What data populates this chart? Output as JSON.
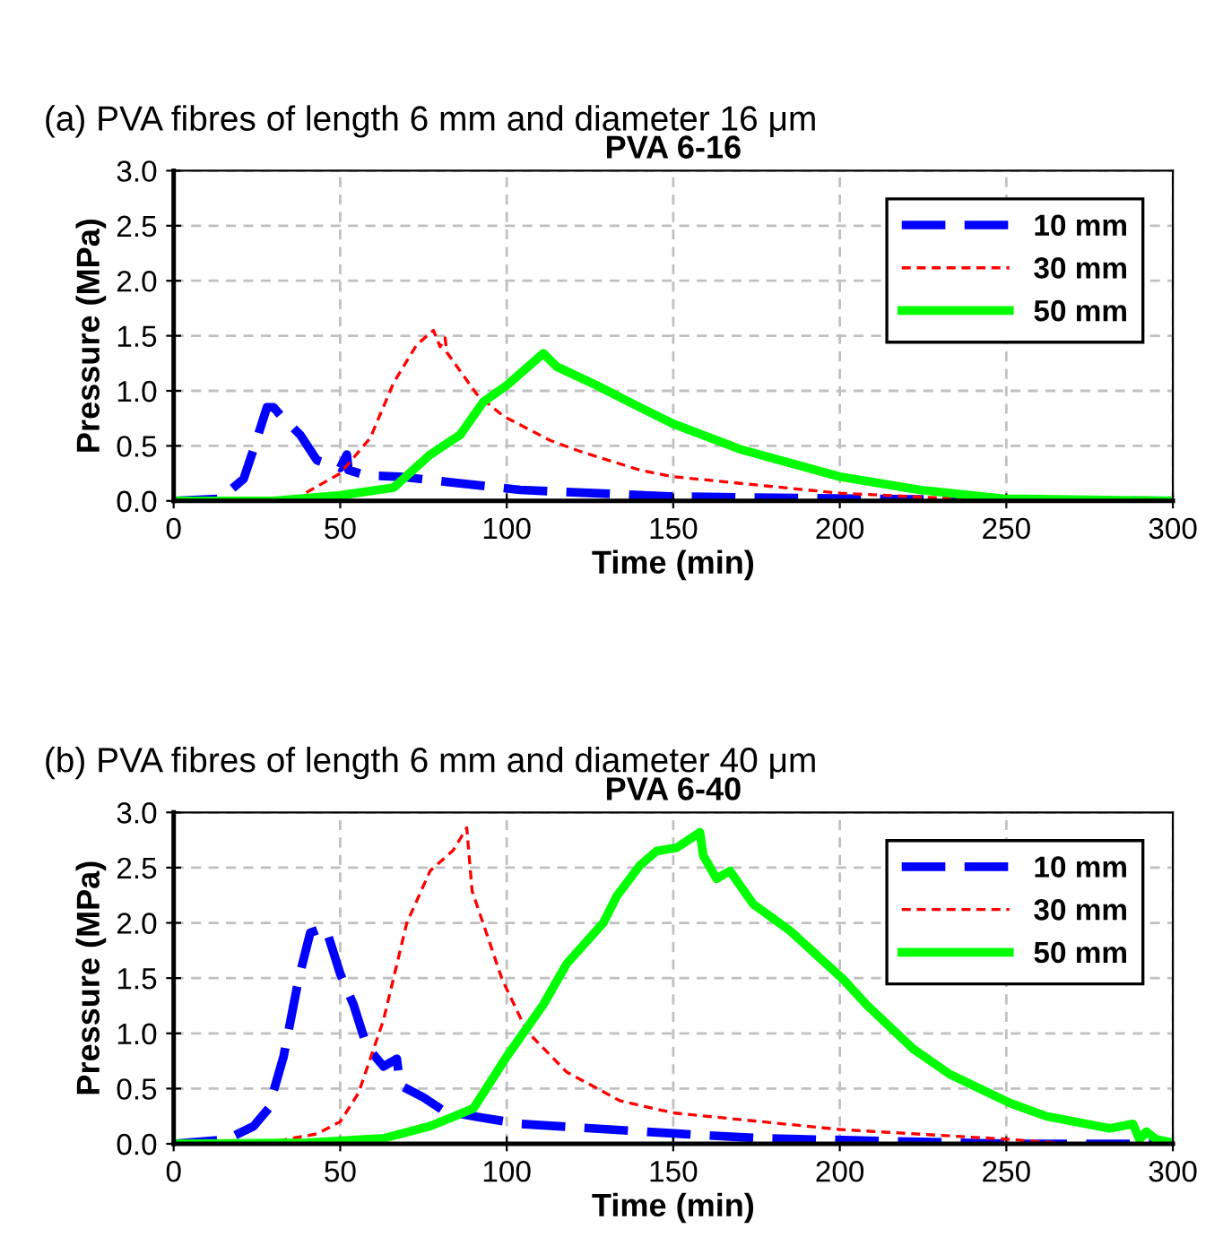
{
  "chart_data": [
    {
      "type": "line",
      "title": "PVA 6-16",
      "annotations": [
        "(a) PVA fibres of length 6 mm and diameter 16 μm"
      ],
      "xlabel": "Time (min)",
      "ylabel": "Pressure (MPa)",
      "xlim": [
        0,
        300
      ],
      "xticks": [
        0,
        50,
        100,
        150,
        200,
        250,
        300
      ],
      "ylim": [
        0,
        3.0
      ],
      "yticks": [
        {
          "value": 0,
          "label": "0.0"
        },
        {
          "value": 0.5,
          "label": "0.5"
        },
        {
          "value": 1.0,
          "label": "1.0"
        },
        {
          "value": 1.5,
          "label": "1.5"
        },
        {
          "value": 2.0,
          "label": "2.0"
        },
        {
          "value": 2.5,
          "label": "2.5"
        },
        {
          "value": 3.0,
          "label": "3.0"
        }
      ],
      "grid": true,
      "legend": "top right",
      "series": [
        {
          "name": "10 mm",
          "color": "#0000ff",
          "line_style": "dashed",
          "x": [
            0,
            14,
            21,
            24,
            28,
            30,
            32,
            38,
            43,
            50,
            52,
            52.5,
            58,
            68,
            104,
            149,
            174,
            233,
            300
          ],
          "values": [
            0,
            0.02,
            0.2,
            0.47,
            0.85,
            0.85,
            0.78,
            0.6,
            0.37,
            0.3,
            0.42,
            0.28,
            0.23,
            0.22,
            0.1,
            0.04,
            0.03,
            0.01,
            0
          ]
        },
        {
          "name": "30 mm",
          "color": "#ff0000",
          "line_style": "dotted",
          "x": [
            0,
            30,
            36,
            50,
            59,
            66,
            73,
            78,
            80,
            81.5,
            82,
            91,
            99,
            113,
            122,
            140,
            150,
            200,
            249,
            300
          ],
          "values": [
            0,
            0,
            0.01,
            0.25,
            0.57,
            1.07,
            1.42,
            1.55,
            1.4,
            1.48,
            1.35,
            0.97,
            0.77,
            0.55,
            0.45,
            0.28,
            0.22,
            0.07,
            0,
            0
          ]
        },
        {
          "name": "50 mm",
          "color": "#00ff00",
          "line_style": "solid",
          "x": [
            0,
            30,
            50,
            66,
            77,
            86,
            93,
            100,
            111,
            115,
            127,
            138,
            150,
            170,
            200,
            224,
            249,
            300
          ],
          "values": [
            0,
            0,
            0.05,
            0.12,
            0.42,
            0.6,
            0.9,
            1.05,
            1.34,
            1.22,
            1.05,
            0.88,
            0.7,
            0.47,
            0.22,
            0.1,
            0.02,
            0
          ]
        }
      ]
    },
    {
      "type": "line",
      "title": "PVA 6-40",
      "annotations": [
        "(b) PVA fibres of length 6 mm and diameter 40 μm"
      ],
      "xlabel": "Time (min)",
      "ylabel": "Pressure (MPa)",
      "xlim": [
        0,
        300
      ],
      "xticks": [
        0,
        50,
        100,
        150,
        200,
        250,
        300
      ],
      "ylim": [
        0,
        3.0
      ],
      "yticks": [
        {
          "value": 0,
          "label": "0.0"
        },
        {
          "value": 0.5,
          "label": "0.5"
        },
        {
          "value": 1.0,
          "label": "1.0"
        },
        {
          "value": 1.5,
          "label": "1.5"
        },
        {
          "value": 2.0,
          "label": "2.0"
        },
        {
          "value": 2.5,
          "label": "2.5"
        },
        {
          "value": 3.0,
          "label": "3.0"
        }
      ],
      "grid": true,
      "legend": "top right",
      "series": [
        {
          "name": "10 mm",
          "color": "#0000ff",
          "line_style": "dashed",
          "x": [
            0,
            16,
            24,
            28.5,
            33,
            37.5,
            41,
            45.6,
            50,
            54,
            58,
            63,
            67,
            68,
            75,
            81,
            90,
            104,
            158,
            176,
            221,
            251,
            300
          ],
          "values": [
            0,
            0.04,
            0.16,
            0.32,
            0.79,
            1.49,
            1.91,
            1.96,
            1.54,
            1.26,
            0.88,
            0.7,
            0.77,
            0.53,
            0.42,
            0.3,
            0.25,
            0.18,
            0.08,
            0.05,
            0.02,
            0,
            0
          ]
        },
        {
          "name": "30 mm",
          "color": "#ff0000",
          "line_style": "dotted",
          "x": [
            0,
            32,
            43,
            50,
            55.5,
            63,
            70,
            77,
            84,
            88,
            89.6,
            98.6,
            106,
            118,
            134,
            150,
            200,
            251,
            269,
            300
          ],
          "values": [
            0,
            0.03,
            0.09,
            0.2,
            0.46,
            1.12,
            2.0,
            2.47,
            2.66,
            2.86,
            2.29,
            1.49,
            1.02,
            0.65,
            0.39,
            0.28,
            0.13,
            0.04,
            0,
            0
          ]
        },
        {
          "name": "50 mm",
          "color": "#00ff00",
          "line_style": "solid",
          "x": [
            0,
            40,
            63,
            77,
            90,
            100,
            111,
            118,
            129,
            133,
            140,
            145,
            151,
            158,
            159,
            163,
            167,
            174,
            185,
            201,
            208,
            222,
            233,
            251,
            262,
            281,
            288,
            290,
            292,
            295,
            300
          ],
          "values": [
            0,
            0.01,
            0.05,
            0.16,
            0.32,
            0.79,
            1.26,
            1.63,
            2.0,
            2.24,
            2.52,
            2.65,
            2.68,
            2.82,
            2.61,
            2.4,
            2.47,
            2.17,
            1.93,
            1.49,
            1.26,
            0.86,
            0.63,
            0.37,
            0.25,
            0.14,
            0.18,
            0.04,
            0.11,
            0.04,
            0.01
          ]
        }
      ]
    }
  ]
}
